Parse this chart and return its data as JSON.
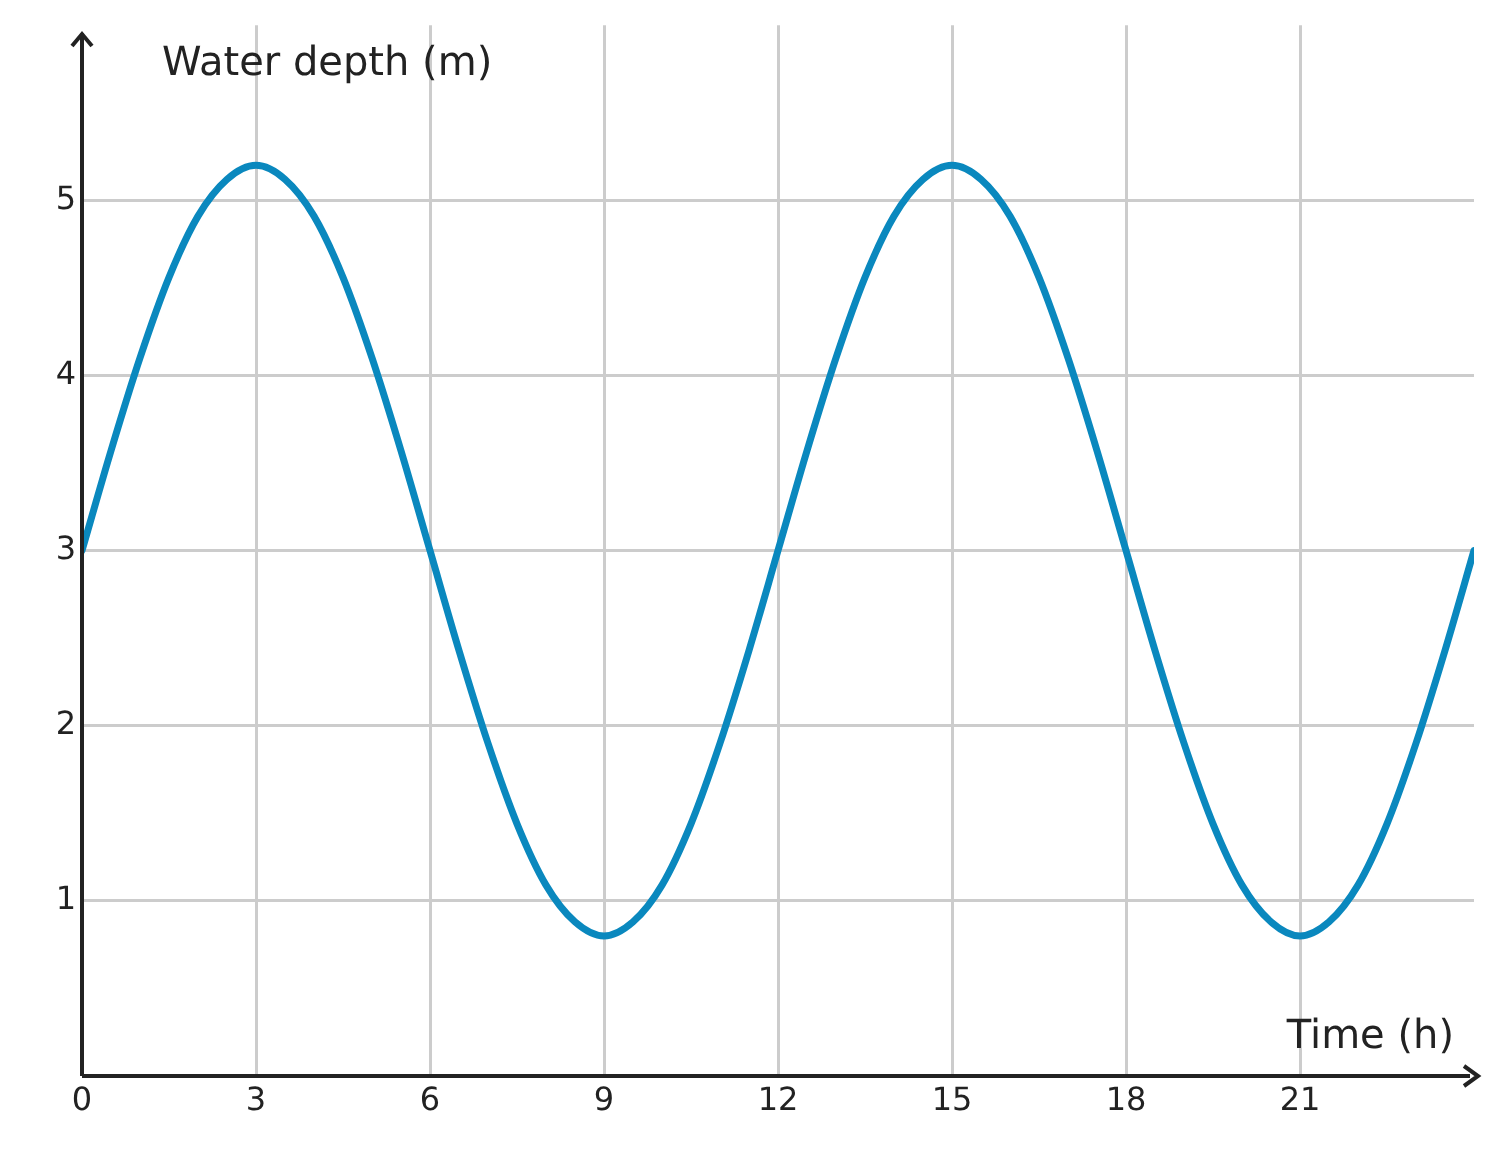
{
  "chart_data": {
    "type": "line",
    "xlabel": "Time (h)",
    "ylabel": "Water depth (m)",
    "x": [
      0,
      0.5,
      1,
      1.5,
      2,
      2.5,
      3,
      3.5,
      4,
      4.5,
      5,
      5.5,
      6,
      6.5,
      7,
      7.5,
      8,
      8.5,
      9,
      9.5,
      10,
      10.5,
      11,
      11.5,
      12,
      12.5,
      13,
      13.5,
      14,
      14.5,
      15,
      15.5,
      16,
      16.5,
      17,
      17.5,
      18,
      18.5,
      19,
      19.5,
      20,
      20.5,
      21,
      21.5,
      22,
      22.5,
      23,
      23.5,
      24
    ],
    "series": [
      {
        "color": "#0a88be",
        "values": [
          3,
          3.57,
          4.1,
          4.56,
          4.91,
          5.12,
          5.2,
          5.12,
          4.91,
          4.56,
          4.1,
          3.57,
          3,
          2.43,
          1.9,
          1.44,
          1.09,
          0.88,
          0.8,
          0.88,
          1.09,
          1.44,
          1.9,
          2.43,
          3,
          3.57,
          4.1,
          4.56,
          4.91,
          5.12,
          5.2,
          5.12,
          4.91,
          4.56,
          4.1,
          3.57,
          3,
          2.43,
          1.9,
          1.44,
          1.09,
          0.88,
          0.8,
          0.88,
          1.09,
          1.44,
          1.9,
          2.43,
          3
        ]
      }
    ],
    "xlim": [
      0,
      24
    ],
    "xticks": [
      0,
      3,
      6,
      9,
      12,
      15,
      18,
      21
    ],
    "ylim": [
      0,
      6
    ],
    "yticks": [
      1,
      2,
      3,
      4,
      5
    ],
    "grid": true,
    "legend": false,
    "marker": "none",
    "line_style": "solid"
  }
}
